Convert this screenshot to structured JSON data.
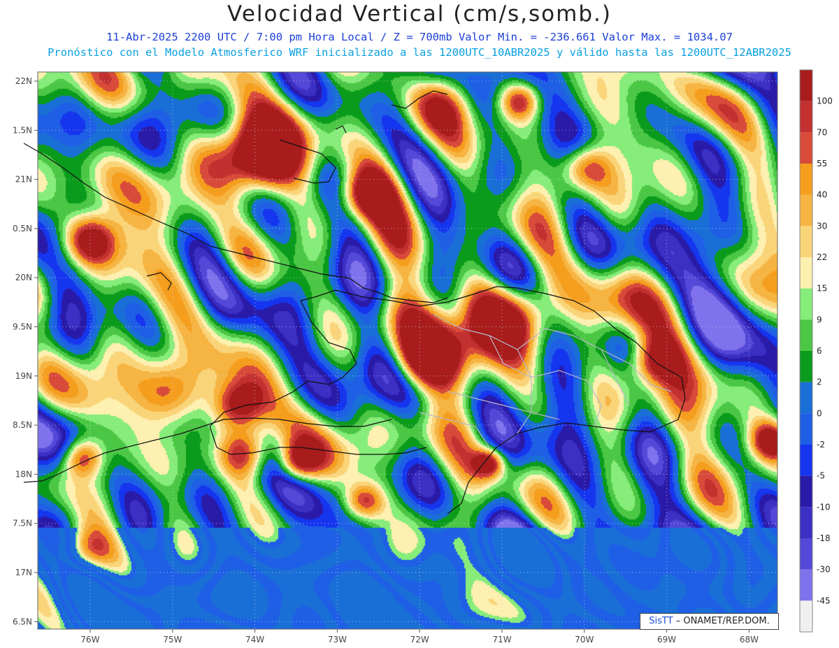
{
  "header": {
    "title": "Velocidad Vertical (cm/s,somb.)",
    "subtitle1": "11-Abr-2025  2200 UTC / 7:00 pm Hora Local / Z = 700mb   Valor Min. = -236.661  Valor Max. = 1034.07",
    "subtitle2": "Pronóstico con el Modelo Atmosferico WRF inicializado a las 1200UTC_10ABR2025 y válido hasta las  1200UTC_12ABR2025"
  },
  "map": {
    "lat_labels": [
      "22N",
      "1.5N",
      "21N",
      "0.5N",
      "20N",
      "9.5N",
      "19N",
      "8.5N",
      "18N",
      "7.5N",
      "17N",
      "6.5N"
    ],
    "lon_labels": [
      "76W",
      "75W",
      "74W",
      "73W",
      "72W",
      "71W",
      "70W",
      "69W",
      "68W"
    ],
    "lon_range": [
      -76.6,
      -67.6
    ],
    "lat_range": [
      16.5,
      22.2
    ]
  },
  "colorbar": {
    "labels": [
      "100",
      "70",
      "55",
      "40",
      "30",
      "22",
      "15",
      "9",
      "6",
      "2",
      "0",
      "-2",
      "-5",
      "-10",
      "-18",
      "-30",
      "-45"
    ],
    "colors": [
      "#a81c1c",
      "#c33030",
      "#d84a3a",
      "#f59e1e",
      "#f6b442",
      "#fad479",
      "#fdf0b0",
      "#86ec7a",
      "#4cc745",
      "#0b9b1c",
      "#1a6fd6",
      "#1e5fe6",
      "#1535ee",
      "#2a1aa8",
      "#3c2fc4",
      "#5448d8",
      "#7f72ec",
      "#f0f0f0"
    ]
  },
  "credit": {
    "sis": "SisTT",
    "rest": "– ONAMET/REP.DOM."
  }
}
